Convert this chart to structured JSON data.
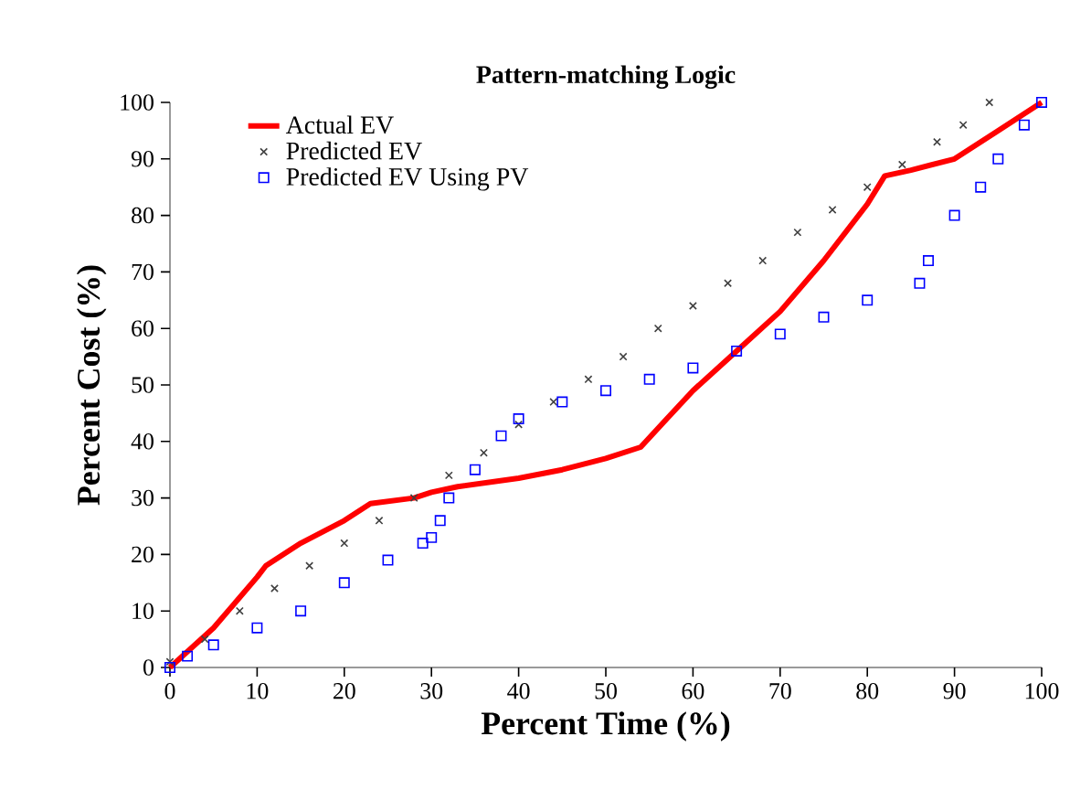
{
  "chart_data": {
    "type": "scatter",
    "title": "Pattern-matching Logic",
    "xlabel": "Percent Time (%)",
    "ylabel": "Percent Cost (%)",
    "xlim": [
      0,
      100
    ],
    "ylim": [
      0,
      100
    ],
    "xticks": [
      0,
      10,
      20,
      30,
      40,
      50,
      60,
      70,
      80,
      90,
      100
    ],
    "yticks": [
      0,
      10,
      20,
      30,
      40,
      50,
      60,
      70,
      80,
      90,
      100
    ],
    "grid": false,
    "legend": "top left",
    "series": [
      {
        "name": "Actual EV",
        "type": "line",
        "color": "#ff0000",
        "marker": "none",
        "x": [
          0,
          5,
          10,
          11,
          15,
          20,
          23,
          28,
          30,
          33,
          40,
          45,
          50,
          54,
          57,
          60,
          65,
          70,
          75,
          80,
          82,
          85,
          90,
          95,
          100
        ],
        "values": [
          0,
          7,
          16,
          18,
          22,
          26,
          29,
          30,
          31,
          32,
          33.5,
          35,
          37,
          39,
          44,
          49,
          56,
          63,
          72,
          82,
          87,
          88,
          90,
          95,
          100
        ]
      },
      {
        "name": "Predicted EV",
        "color": "#404040",
        "marker": "cross",
        "x": [
          0,
          4,
          8,
          12,
          16,
          20,
          24,
          28,
          32,
          36,
          40,
          44,
          48,
          52,
          56,
          60,
          64,
          68,
          72,
          76,
          80,
          84,
          88,
          91,
          94
        ],
        "values": [
          1,
          5,
          10,
          14,
          18,
          22,
          26,
          30,
          34,
          38,
          43,
          47,
          51,
          55,
          60,
          64,
          68,
          72,
          77,
          81,
          85,
          89,
          93,
          96,
          100
        ]
      },
      {
        "name": "Predicted EV Using PV",
        "color": "#0000ff",
        "marker": "square",
        "x": [
          0,
          2,
          5,
          10,
          15,
          20,
          25,
          29,
          30,
          31,
          32,
          35,
          38,
          40,
          45,
          50,
          55,
          60,
          65,
          70,
          75,
          80,
          86,
          87,
          90,
          93,
          95,
          98,
          100
        ],
        "values": [
          0,
          2,
          4,
          7,
          10,
          15,
          19,
          22,
          23,
          26,
          30,
          35,
          41,
          44,
          47,
          49,
          51,
          53,
          56,
          59,
          62,
          65,
          68,
          72,
          80,
          85,
          90,
          96,
          100
        ]
      }
    ]
  }
}
